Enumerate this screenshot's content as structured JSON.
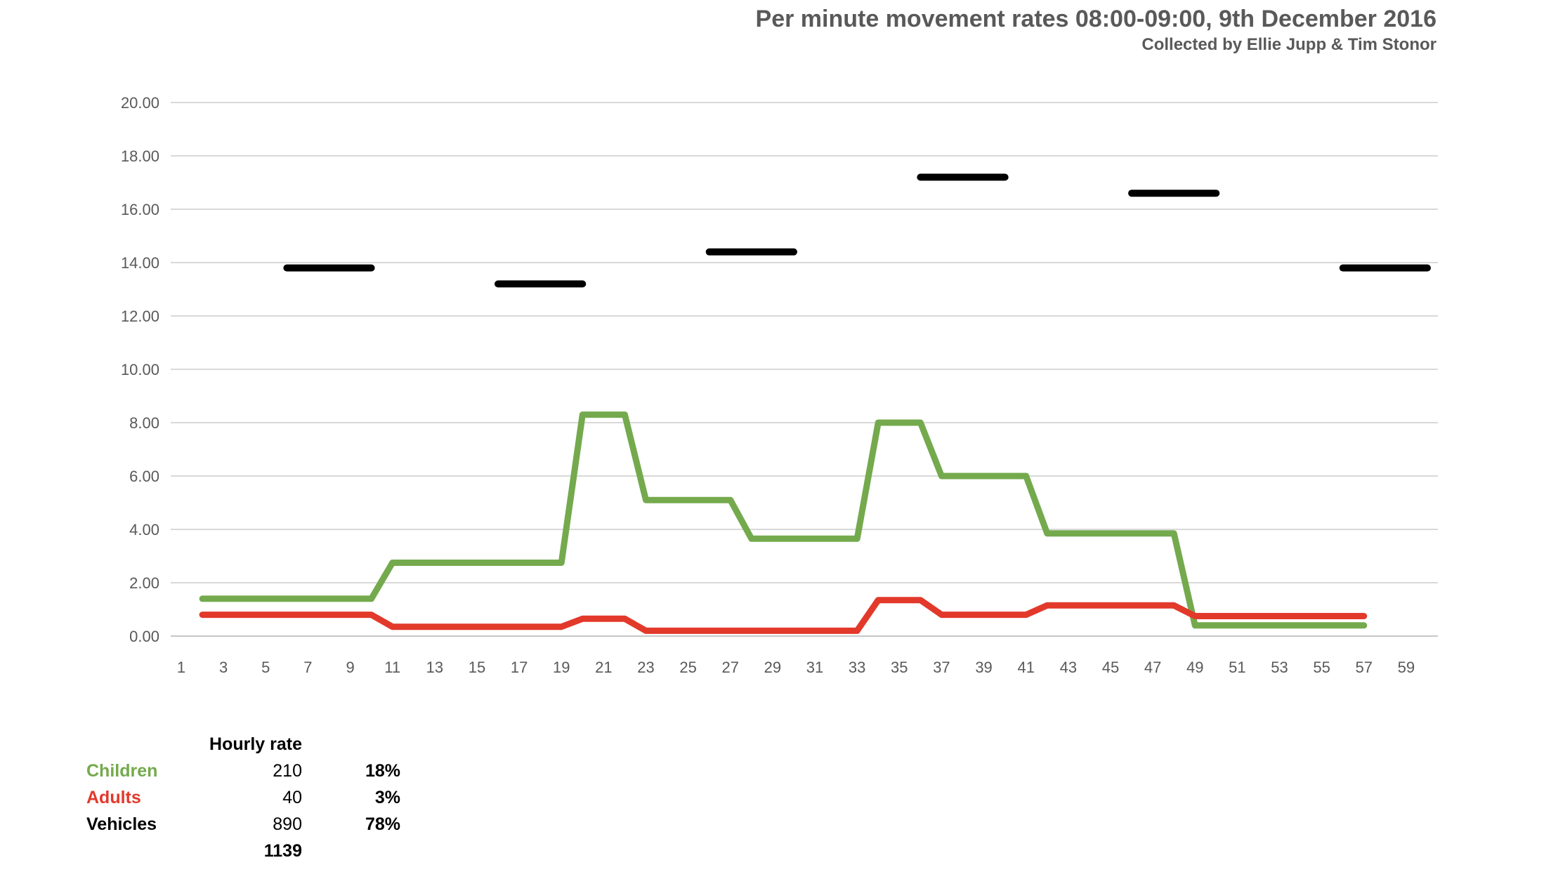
{
  "title": "Per minute movement rates 08:00-09:00, 9th December 2016",
  "subtitle": "Collected by Ellie Jupp & Tim Stonor",
  "colors": {
    "children": "#74AA4D",
    "adults": "#E2392B",
    "vehicles": "#000000",
    "gridline": "#D9D9D9",
    "baseline": "#C6C6C6",
    "axis_text": "#595959",
    "title_text": "#595959"
  },
  "chart_data": {
    "type": "line",
    "title": "Per minute movement rates 08:00-09:00, 9th December 2016",
    "subtitle": "Collected by Ellie Jupp & Tim Stonor",
    "xlabel": "",
    "ylabel": "",
    "x_axis": {
      "min": 1,
      "max": 60,
      "tick_labels": [
        "1",
        "3",
        "5",
        "7",
        "9",
        "11",
        "13",
        "15",
        "17",
        "19",
        "21",
        "23",
        "25",
        "27",
        "29",
        "31",
        "33",
        "35",
        "37",
        "39",
        "41",
        "43",
        "45",
        "47",
        "49",
        "51",
        "53",
        "55",
        "57",
        "59"
      ]
    },
    "y_axis": {
      "min": 0,
      "max": 20,
      "tick_step": 2,
      "tick_labels": [
        "0.00",
        "2.00",
        "4.00",
        "6.00",
        "8.00",
        "10.00",
        "12.00",
        "14.00",
        "16.00",
        "18.00",
        "20.00"
      ]
    },
    "grid": true,
    "legend": "none",
    "series": [
      {
        "name": "Children",
        "color": "#74AA4D",
        "style": "steps",
        "steps": [
          {
            "from": 2,
            "to": 10,
            "value": 1.4
          },
          {
            "from": 11,
            "to": 19,
            "value": 2.75
          },
          {
            "from": 20,
            "to": 22,
            "value": 8.3
          },
          {
            "from": 23,
            "to": 27,
            "value": 5.1
          },
          {
            "from": 28,
            "to": 33,
            "value": 3.65
          },
          {
            "from": 34,
            "to": 36,
            "value": 8.0
          },
          {
            "from": 37,
            "to": 41,
            "value": 6.0
          },
          {
            "from": 42,
            "to": 48,
            "value": 3.85
          },
          {
            "from": 49,
            "to": 57,
            "value": 0.4
          }
        ]
      },
      {
        "name": "Adults",
        "color": "#E2392B",
        "style": "steps",
        "steps": [
          {
            "from": 2,
            "to": 10,
            "value": 0.8
          },
          {
            "from": 11,
            "to": 19,
            "value": 0.35
          },
          {
            "from": 20,
            "to": 22,
            "value": 0.65
          },
          {
            "from": 23,
            "to": 33,
            "value": 0.2
          },
          {
            "from": 34,
            "to": 36,
            "value": 1.35
          },
          {
            "from": 37,
            "to": 41,
            "value": 0.8
          },
          {
            "from": 42,
            "to": 48,
            "value": 1.15
          },
          {
            "from": 49,
            "to": 57,
            "value": 0.75
          }
        ]
      },
      {
        "name": "Vehicles",
        "color": "#000000",
        "style": "disjoint-segments",
        "segments": [
          {
            "from": 6,
            "to": 10,
            "value": 13.8
          },
          {
            "from": 16,
            "to": 20,
            "value": 13.2
          },
          {
            "from": 26,
            "to": 30,
            "value": 14.4
          },
          {
            "from": 36,
            "to": 40,
            "value": 17.2
          },
          {
            "from": 46,
            "to": 50,
            "value": 16.6
          },
          {
            "from": 56,
            "to": 60,
            "value": 13.8
          }
        ]
      }
    ]
  },
  "summary_table": {
    "header": "Hourly rate",
    "rows": [
      {
        "label": "Children",
        "value": "210",
        "pct": "18%",
        "color": "#74AA4D"
      },
      {
        "label": "Adults",
        "value": "40",
        "pct": "3%",
        "color": "#E2392B"
      },
      {
        "label": "Vehicles",
        "value": "890",
        "pct": "78%",
        "color": "#000000"
      }
    ],
    "total": "1139"
  }
}
